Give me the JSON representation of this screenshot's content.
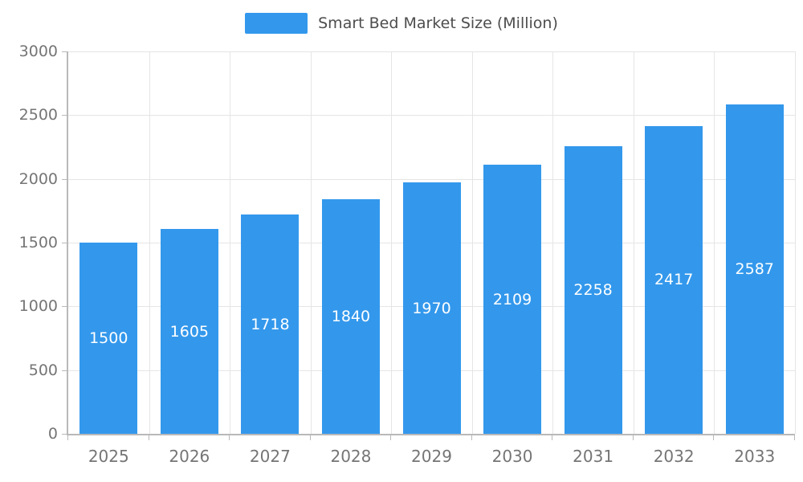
{
  "chart_data": {
    "type": "bar",
    "title": "Smart Bed Market Size (Million)",
    "categories": [
      "2025",
      "2026",
      "2027",
      "2028",
      "2029",
      "2030",
      "2031",
      "2032",
      "2033"
    ],
    "values": [
      1500,
      1605,
      1718,
      1840,
      1970,
      2109,
      2258,
      2417,
      2587
    ],
    "xlabel": "",
    "ylabel": "",
    "ylim": [
      0,
      3000
    ],
    "yticks": [
      0,
      500,
      1000,
      1500,
      2000,
      2500,
      3000
    ],
    "grid": true,
    "legend_position": "top",
    "bar_color": "#3398EC",
    "bar_label_color": "#ffffff",
    "axis_label_color": "#757575",
    "title_color": "#4d4d4d",
    "gridline_color": "#e5e5e5",
    "axis_line_color": "#b9b9b9"
  }
}
